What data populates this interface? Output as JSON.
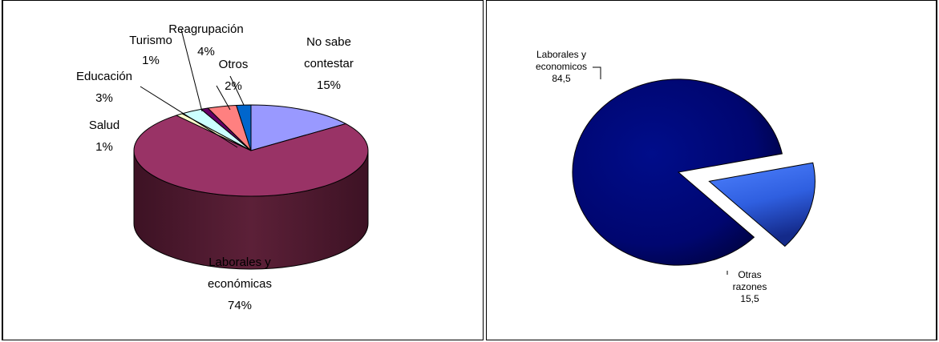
{
  "chart_data": [
    {
      "type": "pie",
      "style": "3d",
      "title": "",
      "slices": [
        {
          "label_lines": [
            "No sabe",
            "contestar"
          ],
          "value_text": "15%",
          "value": 15,
          "color": "#9999ff"
        },
        {
          "label_lines": [
            "Laborales y",
            "económicas"
          ],
          "value_text": "74%",
          "value": 74,
          "color": "#993366"
        },
        {
          "label_lines": [
            "Salud"
          ],
          "value_text": "1%",
          "value": 1,
          "color": "#ffffcc"
        },
        {
          "label_lines": [
            "Educación"
          ],
          "value_text": "3%",
          "value": 3,
          "color": "#ccffff"
        },
        {
          "label_lines": [
            "Turismo"
          ],
          "value_text": "1%",
          "value": 1,
          "color": "#660066"
        },
        {
          "label_lines": [
            "Reagrupación"
          ],
          "value_text": "4%",
          "value": 4,
          "color": "#ff8080"
        },
        {
          "label_lines": [
            "Otros"
          ],
          "value_text": "2%",
          "value": 2,
          "color": "#0066cc"
        }
      ]
    },
    {
      "type": "pie",
      "style": "exploded",
      "title": "",
      "slices": [
        {
          "label_lines": [
            "Laborales y",
            "economicos"
          ],
          "value_text": "84,5",
          "value": 84.5,
          "color": "#000080"
        },
        {
          "label_lines": [
            "Otras",
            "razones"
          ],
          "value_text": "15,5",
          "value": 15.5,
          "color": "#3366ff"
        }
      ]
    }
  ]
}
